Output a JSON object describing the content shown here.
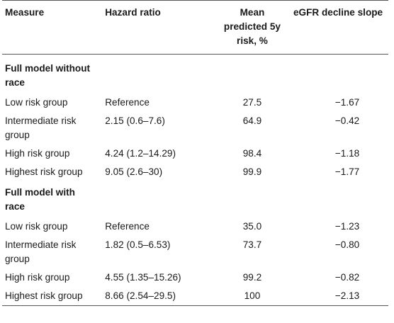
{
  "headers": [
    "Measure",
    "Hazard ratio",
    "Mean predicted 5y risk, %",
    "eGFR decline slope"
  ],
  "sections": [
    {
      "title": "Full model without race",
      "rows": [
        {
          "measure": "Low risk group",
          "hr": "Reference",
          "risk": "27.5",
          "slope": "−1.67"
        },
        {
          "measure": "Intermediate risk group",
          "hr": "2.15 (0.6–7.6)",
          "risk": "64.9",
          "slope": "−0.42"
        },
        {
          "measure": "High risk group",
          "hr": "4.24 (1.2–14.29)",
          "risk": "98.4",
          "slope": "−1.18"
        },
        {
          "measure": "Highest risk group",
          "hr": "9.05 (2.6–30)",
          "risk": "99.9",
          "slope": "−1.77"
        }
      ]
    },
    {
      "title": "Full model with race",
      "rows": [
        {
          "measure": "Low risk group",
          "hr": "Reference",
          "risk": "35.0",
          "slope": "−1.23"
        },
        {
          "measure": "Intermediate risk group",
          "hr": "1.82 (0.5–6.53)",
          "risk": "73.7",
          "slope": "−0.80"
        },
        {
          "measure": "High risk group",
          "hr": "4.55 (1.35–15.26)",
          "risk": "99.2",
          "slope": "−0.82"
        },
        {
          "measure": "Highest risk group",
          "hr": "8.66 (2.54–29.5)",
          "risk": "100",
          "slope": "−2.13"
        }
      ]
    }
  ]
}
